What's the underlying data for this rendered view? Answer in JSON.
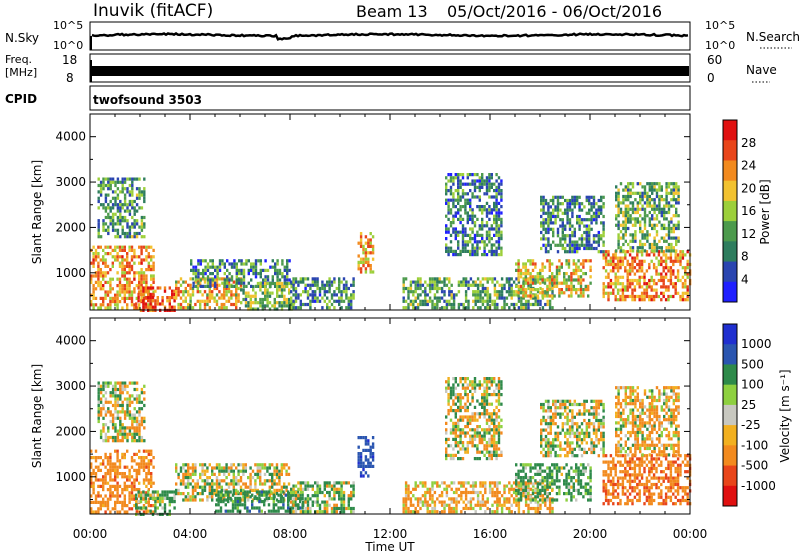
{
  "header": {
    "station": "Inuvik (fitACF)",
    "beam": "Beam 13",
    "date_range": "05/Oct/2016 - 06/Oct/2016"
  },
  "top_panel": {
    "left_label": "N.Sky",
    "left_ticks": [
      "10^5",
      "10^0"
    ],
    "right_label": "N.Search",
    "right_ticks": [
      "10^5",
      "10^0"
    ]
  },
  "freq_panel": {
    "left_label_line1": "Freq.",
    "left_label_line2": "[MHz]",
    "left_ticks": [
      "18",
      "8"
    ],
    "right_label": "Nave",
    "right_ticks": [
      "60",
      "0"
    ]
  },
  "cpid": {
    "label": "CPID",
    "value": "twofsound 3503"
  },
  "x_axis": {
    "label": "Time UT",
    "ticks": [
      "00:00",
      "04:00",
      "08:00",
      "12:00",
      "16:00",
      "20:00",
      "00:00"
    ]
  },
  "colors": {
    "power_scale": [
      "#1f1fff",
      "#2a45b0",
      "#2e7d5e",
      "#4c9a4c",
      "#9ccf3a",
      "#f2c230",
      "#f28a1e",
      "#e8451a",
      "#e01010"
    ],
    "velocity_scale": [
      "#e01010",
      "#e8451a",
      "#f28a1e",
      "#f2b020",
      "#c8c8c0",
      "#8ed040",
      "#2e8a4a",
      "#2a55b0",
      "#1f2fcf"
    ]
  },
  "chart_data": [
    {
      "type": "heatmap",
      "name": "power",
      "ylabel": "Slant Range [km]",
      "yticks": [
        1000,
        2000,
        3000,
        4000
      ],
      "ylim": [
        180,
        4500
      ],
      "xlim_hours": [
        0,
        24
      ],
      "colorbar_label": "Power [dB]",
      "colorbar_ticks": [
        "28",
        "24",
        "20",
        "16",
        "12",
        "8",
        "4"
      ],
      "colorbar_range": [
        0,
        32
      ],
      "regions": [
        {
          "t0": 0.0,
          "t1": 2.5,
          "r0": 200,
          "r1": 1600,
          "v": 22
        },
        {
          "t0": 0.3,
          "t1": 2.2,
          "r0": 1800,
          "r1": 3100,
          "v": 11
        },
        {
          "t0": 1.8,
          "t1": 3.4,
          "r0": 200,
          "r1": 700,
          "v": 27
        },
        {
          "t0": 3.4,
          "t1": 6.0,
          "r0": 200,
          "r1": 900,
          "v": 20
        },
        {
          "t0": 4.0,
          "t1": 8.0,
          "r0": 700,
          "r1": 1300,
          "v": 9
        },
        {
          "t0": 6.0,
          "t1": 8.2,
          "r0": 200,
          "r1": 800,
          "v": 14
        },
        {
          "t0": 8.0,
          "t1": 10.5,
          "r0": 200,
          "r1": 900,
          "v": 10
        },
        {
          "t0": 10.7,
          "t1": 11.3,
          "r0": 1000,
          "r1": 1900,
          "v": 21
        },
        {
          "t0": 12.5,
          "t1": 18.5,
          "r0": 200,
          "r1": 900,
          "v": 12
        },
        {
          "t0": 14.2,
          "t1": 16.5,
          "r0": 1400,
          "r1": 3200,
          "v": 9
        },
        {
          "t0": 17.0,
          "t1": 20.0,
          "r0": 500,
          "r1": 1300,
          "v": 19
        },
        {
          "t0": 18.0,
          "t1": 20.5,
          "r0": 1500,
          "r1": 2700,
          "v": 10
        },
        {
          "t0": 20.5,
          "t1": 24.0,
          "r0": 400,
          "r1": 1500,
          "v": 23
        },
        {
          "t0": 21.0,
          "t1": 23.5,
          "r0": 1500,
          "r1": 3000,
          "v": 13
        }
      ]
    },
    {
      "type": "heatmap",
      "name": "velocity",
      "ylabel": "Slant Range [km]",
      "yticks": [
        1000,
        2000,
        3000,
        4000
      ],
      "ylim": [
        180,
        4500
      ],
      "xlim_hours": [
        0,
        24
      ],
      "colorbar_label": "Velocity [m s⁻¹]",
      "colorbar_ticks": [
        "1000",
        "500",
        "100",
        "25",
        "-25",
        "-100",
        "-500",
        "-1000"
      ],
      "regions": [
        {
          "t0": 0.0,
          "t1": 2.5,
          "r0": 200,
          "r1": 1600,
          "v": -300
        },
        {
          "t0": 0.3,
          "t1": 2.2,
          "r0": 1800,
          "r1": 3100,
          "v": 0
        },
        {
          "t0": 1.8,
          "t1": 3.4,
          "r0": 200,
          "r1": 700,
          "v": 150
        },
        {
          "t0": 3.4,
          "t1": 8.0,
          "r0": 500,
          "r1": 1300,
          "v": 0
        },
        {
          "t0": 5.0,
          "t1": 8.5,
          "r0": 250,
          "r1": 700,
          "v": 300
        },
        {
          "t0": 8.0,
          "t1": 10.5,
          "r0": 200,
          "r1": 900,
          "v": 80
        },
        {
          "t0": 10.7,
          "t1": 11.3,
          "r0": 1000,
          "r1": 1900,
          "v": 800
        },
        {
          "t0": 12.5,
          "t1": 18.5,
          "r0": 200,
          "r1": 900,
          "v": -150
        },
        {
          "t0": 14.2,
          "t1": 16.5,
          "r0": 1400,
          "r1": 3200,
          "v": 0
        },
        {
          "t0": 17.0,
          "t1": 20.0,
          "r0": 500,
          "r1": 1300,
          "v": 200
        },
        {
          "t0": 18.0,
          "t1": 20.5,
          "r0": 1500,
          "r1": 2700,
          "v": 0
        },
        {
          "t0": 20.5,
          "t1": 24.0,
          "r0": 400,
          "r1": 1500,
          "v": -400
        },
        {
          "t0": 21.0,
          "t1": 23.5,
          "r0": 1500,
          "r1": 3000,
          "v": -80
        }
      ]
    }
  ]
}
